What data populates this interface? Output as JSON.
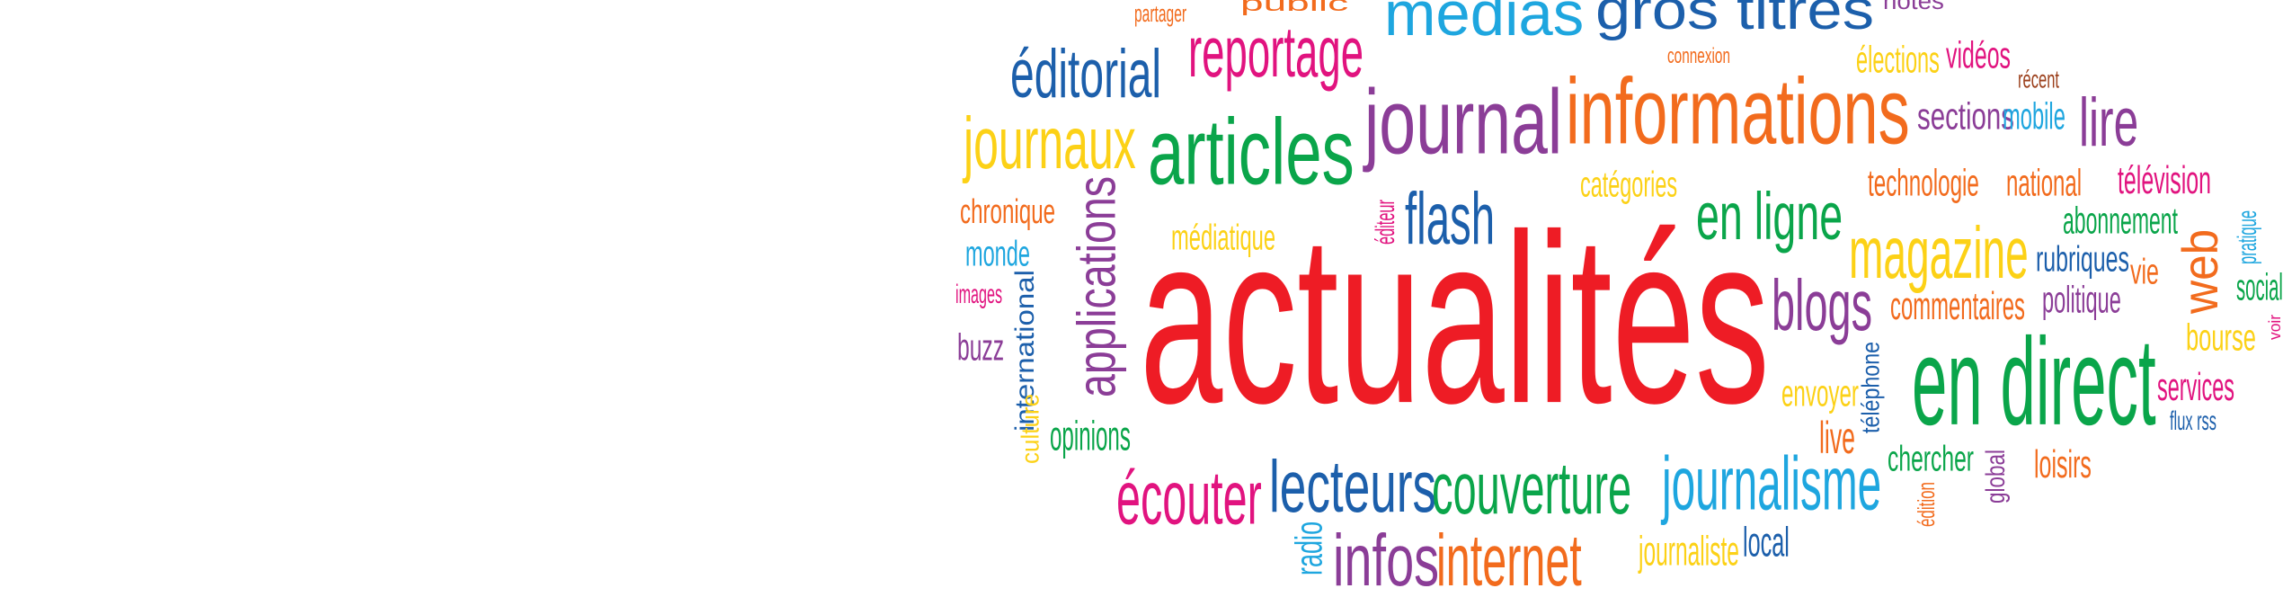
{
  "background": "#ffffff",
  "colors": {
    "red": "#ee1c25",
    "orange": "#f26b1d",
    "yellow": "#fcd116",
    "green": "#0aa54a",
    "teal": "#0aa29a",
    "sky": "#1ea6df",
    "blue": "#1c5fab",
    "purple": "#8b3d97",
    "magenta": "#e1137f",
    "brown": "#9b3f1b"
  },
  "words": [
    {
      "text": "actualités",
      "color": "red"
    },
    {
      "text": "informations",
      "color": "orange"
    },
    {
      "text": "journal",
      "color": "purple"
    },
    {
      "text": "articles",
      "color": "green"
    },
    {
      "text": "médias",
      "color": "sky"
    },
    {
      "text": "gros titres",
      "color": "blue"
    },
    {
      "text": "public",
      "color": "orange"
    },
    {
      "text": "partager",
      "color": "orange"
    },
    {
      "text": "notes",
      "color": "purple"
    },
    {
      "text": "reportage",
      "color": "magenta"
    },
    {
      "text": "éditorial",
      "color": "blue"
    },
    {
      "text": "connexion",
      "color": "orange"
    },
    {
      "text": "élections",
      "color": "yellow"
    },
    {
      "text": "vidéos",
      "color": "magenta"
    },
    {
      "text": "récent",
      "color": "brown"
    },
    {
      "text": "sections",
      "color": "purple"
    },
    {
      "text": "mobile",
      "color": "sky"
    },
    {
      "text": "lire",
      "color": "purple"
    },
    {
      "text": "journaux",
      "color": "yellow"
    },
    {
      "text": "catégories",
      "color": "yellow"
    },
    {
      "text": "technologie",
      "color": "orange"
    },
    {
      "text": "national",
      "color": "orange"
    },
    {
      "text": "télévision",
      "color": "magenta"
    },
    {
      "text": "chronique",
      "color": "orange"
    },
    {
      "text": "applications",
      "color": "purple"
    },
    {
      "text": "flash",
      "color": "blue"
    },
    {
      "text": "en ligne",
      "color": "green"
    },
    {
      "text": "abonnement",
      "color": "green"
    },
    {
      "text": "pratique",
      "color": "sky"
    },
    {
      "text": "monde",
      "color": "sky"
    },
    {
      "text": "médiatique",
      "color": "yellow"
    },
    {
      "text": "éditeur",
      "color": "magenta"
    },
    {
      "text": "magazine",
      "color": "yellow"
    },
    {
      "text": "rubriques",
      "color": "blue"
    },
    {
      "text": "vie",
      "color": "orange"
    },
    {
      "text": "web",
      "color": "orange"
    },
    {
      "text": "social",
      "color": "green"
    },
    {
      "text": "images",
      "color": "magenta"
    },
    {
      "text": "international",
      "color": "blue"
    },
    {
      "text": "blogs",
      "color": "purple"
    },
    {
      "text": "commentaires",
      "color": "orange"
    },
    {
      "text": "politique",
      "color": "purple"
    },
    {
      "text": "voir",
      "color": "magenta"
    },
    {
      "text": "buzz",
      "color": "purple"
    },
    {
      "text": "bourse",
      "color": "yellow"
    },
    {
      "text": "téléphone",
      "color": "blue"
    },
    {
      "text": "en direct",
      "color": "green"
    },
    {
      "text": "envoyer",
      "color": "yellow"
    },
    {
      "text": "services",
      "color": "magenta"
    },
    {
      "text": "culture",
      "color": "yellow"
    },
    {
      "text": "flux rss",
      "color": "blue"
    },
    {
      "text": "live",
      "color": "orange"
    },
    {
      "text": "opinions",
      "color": "green"
    },
    {
      "text": "chercher",
      "color": "green"
    },
    {
      "text": "loisirs",
      "color": "orange"
    },
    {
      "text": "global",
      "color": "purple"
    },
    {
      "text": "écouter",
      "color": "magenta"
    },
    {
      "text": "lecteurs",
      "color": "blue"
    },
    {
      "text": "couverture",
      "color": "green"
    },
    {
      "text": "journalisme",
      "color": "sky"
    },
    {
      "text": "édition",
      "color": "orange"
    },
    {
      "text": "radio",
      "color": "sky"
    },
    {
      "text": "infos",
      "color": "purple"
    },
    {
      "text": "internet",
      "color": "orange"
    },
    {
      "text": "journaliste",
      "color": "yellow"
    },
    {
      "text": "local",
      "color": "blue"
    }
  ]
}
